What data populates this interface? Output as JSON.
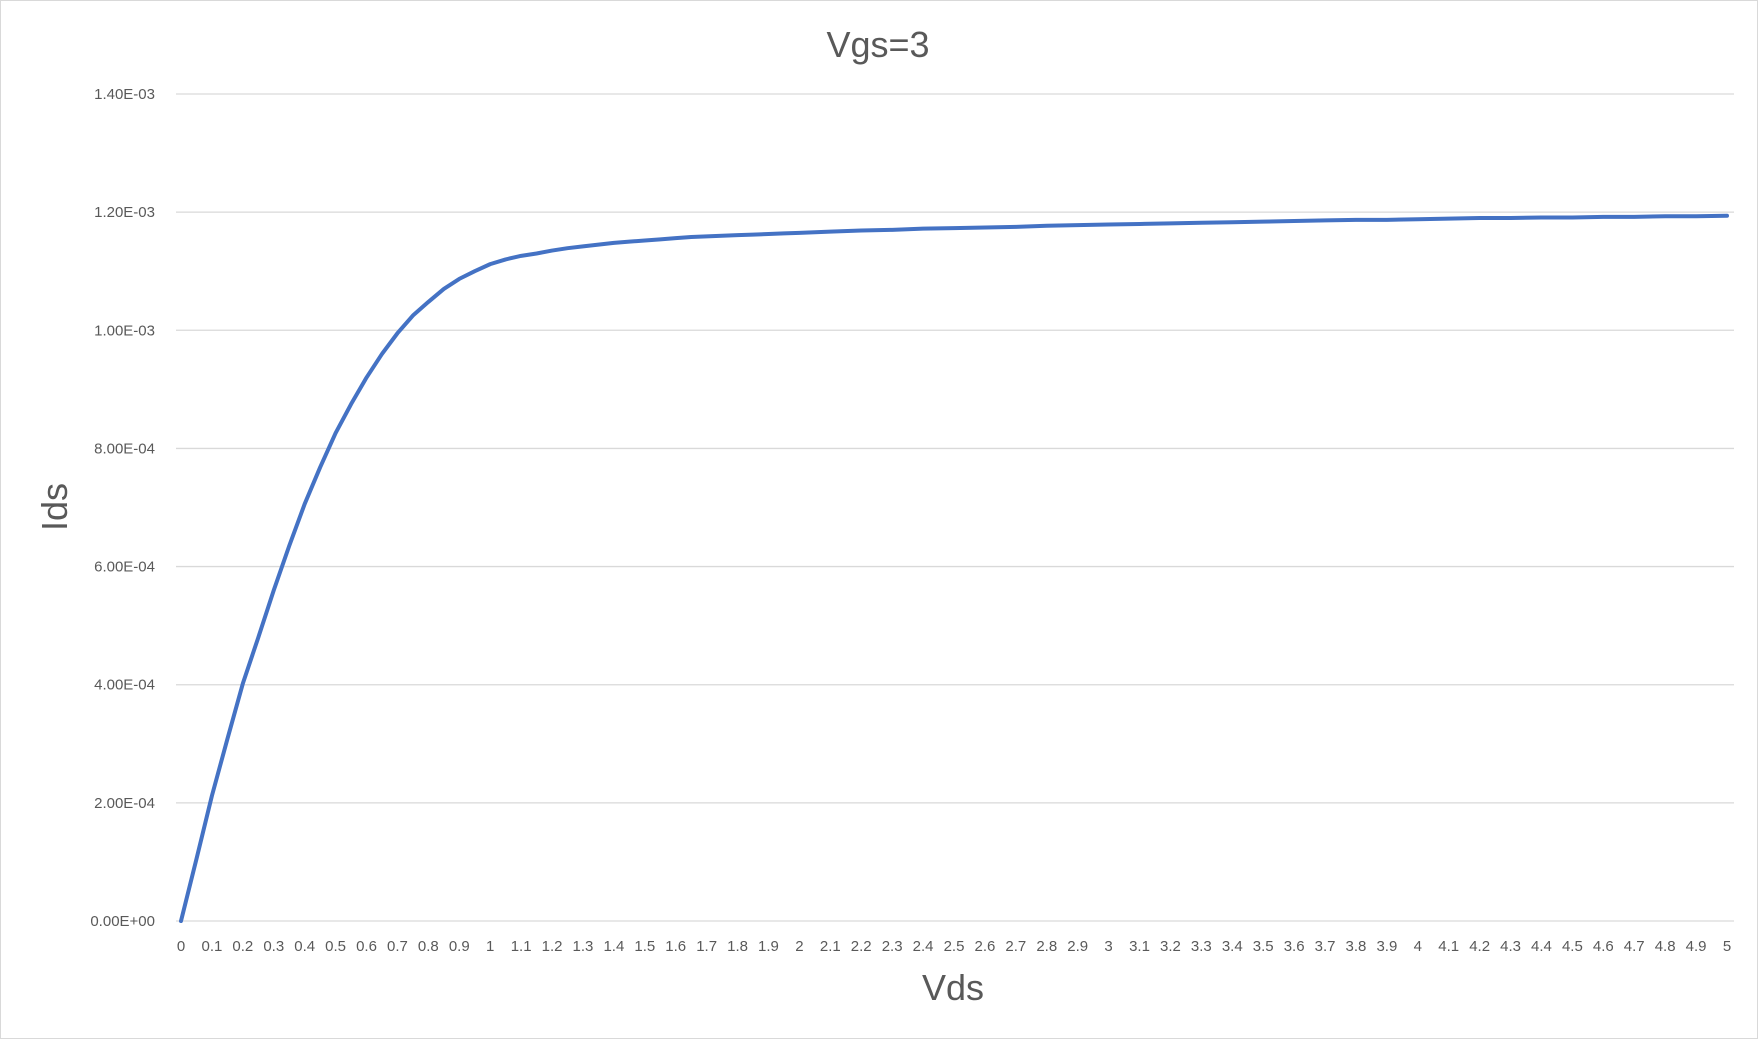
{
  "chart_data": {
    "type": "line",
    "title": "Vgs=3",
    "xlabel": "Vds",
    "ylabel": "Ids",
    "xlim": [
      0,
      5
    ],
    "ylim": [
      0,
      0.0014
    ],
    "grid": true,
    "legend": "none",
    "color": "#4472c4",
    "y_tick_labels": [
      "0.00E+00",
      "2.00E-04",
      "4.00E-04",
      "6.00E-04",
      "8.00E-04",
      "1.00E-03",
      "1.20E-03",
      "1.40E-03"
    ],
    "y_tick_values": [
      0,
      0.0002,
      0.0004,
      0.0006,
      0.0008,
      0.001,
      0.0012,
      0.0014
    ],
    "x_tick_labels": [
      "0",
      "0.1",
      "0.2",
      "0.3",
      "0.4",
      "0.5",
      "0.6",
      "0.7",
      "0.8",
      "0.9",
      "1",
      "1.1",
      "1.2",
      "1.3",
      "1.4",
      "1.5",
      "1.6",
      "1.7",
      "1.8",
      "1.9",
      "2",
      "2.1",
      "2.2",
      "2.3",
      "2.4",
      "2.5",
      "2.6",
      "2.7",
      "2.8",
      "2.9",
      "3",
      "3.1",
      "3.2",
      "3.3",
      "3.4",
      "3.5",
      "3.6",
      "3.7",
      "3.8",
      "3.9",
      "4",
      "4.1",
      "4.2",
      "4.3",
      "4.4",
      "4.5",
      "4.6",
      "4.7",
      "4.8",
      "4.9",
      "5"
    ],
    "series": [
      {
        "x": [
          0,
          0.05,
          0.1,
          0.15,
          0.2,
          0.25,
          0.3,
          0.35,
          0.4,
          0.45,
          0.5,
          0.55,
          0.6,
          0.65,
          0.7,
          0.75,
          0.8,
          0.85,
          0.9,
          0.95,
          1,
          1.05,
          1.1,
          1.15,
          1.2,
          1.25,
          1.3,
          1.35,
          1.4,
          1.45,
          1.5,
          1.55,
          1.6,
          1.65,
          1.7,
          1.75,
          1.8,
          1.85,
          1.9,
          1.95,
          2,
          2.1,
          2.2,
          2.3,
          2.4,
          2.5,
          2.6,
          2.7,
          2.8,
          2.9,
          3,
          3.1,
          3.2,
          3.3,
          3.4,
          3.5,
          3.6,
          3.7,
          3.8,
          3.9,
          4,
          4.1,
          4.2,
          4.3,
          4.4,
          4.5,
          4.6,
          4.7,
          4.8,
          4.9,
          5
        ],
        "y": [
          0,
          0.000105,
          0.000212,
          0.000308,
          0.000402,
          0.00048,
          0.00056,
          0.000635,
          0.000706,
          0.000768,
          0.000826,
          0.000875,
          0.00092,
          0.00096,
          0.000995,
          0.001025,
          0.001048,
          0.00107,
          0.001087,
          0.0011,
          0.001112,
          0.00112,
          0.001126,
          0.00113,
          0.001135,
          0.001139,
          0.001142,
          0.001145,
          0.001148,
          0.00115,
          0.001152,
          0.001154,
          0.001156,
          0.001158,
          0.001159,
          0.00116,
          0.001161,
          0.001162,
          0.001163,
          0.001164,
          0.001165,
          0.001167,
          0.001169,
          0.00117,
          0.001172,
          0.001173,
          0.001174,
          0.001175,
          0.001177,
          0.001178,
          0.001179,
          0.00118,
          0.001181,
          0.001182,
          0.001183,
          0.001184,
          0.001185,
          0.001186,
          0.001187,
          0.001187,
          0.001188,
          0.001189,
          0.00119,
          0.00119,
          0.001191,
          0.001191,
          0.001192,
          0.001192,
          0.001193,
          0.001193,
          0.001194
        ]
      }
    ]
  }
}
